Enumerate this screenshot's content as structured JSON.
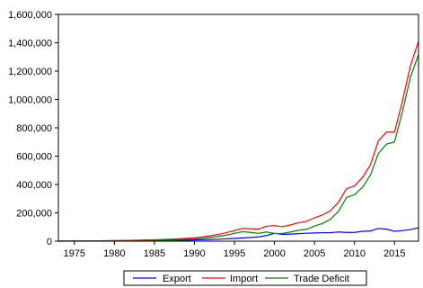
{
  "chart_data": {
    "type": "line",
    "title": "",
    "xlabel": "",
    "ylabel": "",
    "xlim": [
      1973,
      2018
    ],
    "ylim": [
      0,
      1600000
    ],
    "x_ticks": [
      1975,
      1980,
      1985,
      1990,
      1995,
      2000,
      2005,
      2010,
      2015
    ],
    "y_ticks": [
      0,
      200000,
      400000,
      600000,
      800000,
      1000000,
      1200000,
      1400000,
      1600000
    ],
    "x_tick_labels": [
      "1975",
      "1980",
      "1985",
      "1990",
      "1995",
      "2000",
      "2005",
      "2010",
      "2015"
    ],
    "y_tick_labels": [
      "0",
      "200,000",
      "400,000",
      "600,000",
      "800,000",
      "1,000,000",
      "1,200,000",
      "1,400,000",
      "1,600,000"
    ],
    "grid": false,
    "legend_position": "bottom",
    "x": [
      1973,
      1974,
      1975,
      1976,
      1977,
      1978,
      1979,
      1980,
      1981,
      1982,
      1983,
      1984,
      1985,
      1986,
      1987,
      1988,
      1989,
      1990,
      1991,
      1992,
      1993,
      1994,
      1995,
      1996,
      1997,
      1998,
      1999,
      2000,
      2001,
      2002,
      2003,
      2004,
      2005,
      2006,
      2007,
      2008,
      2009,
      2010,
      2011,
      2012,
      2013,
      2014,
      2015,
      2016,
      2017,
      2018
    ],
    "series": [
      {
        "name": "Export",
        "color": "#0000ff",
        "values": [
          200,
          300,
          400,
          500,
          600,
          800,
          1000,
          1200,
          1500,
          1800,
          2200,
          2700,
          3300,
          4000,
          4800,
          5800,
          7000,
          8500,
          10000,
          12000,
          14000,
          17000,
          20000,
          23000,
          26000,
          30000,
          40000,
          55000,
          48000,
          50000,
          53000,
          56000,
          58000,
          60000,
          60000,
          65000,
          62000,
          62000,
          70000,
          72000,
          90000,
          85000,
          70000,
          75000,
          82000,
          95000
        ]
      },
      {
        "name": "Import",
        "color": "#ff0000",
        "values": [
          1000,
          1300,
          1600,
          2000,
          2400,
          2900,
          3500,
          4200,
          5000,
          6000,
          7000,
          8500,
          10000,
          12000,
          14500,
          17000,
          20000,
          24000,
          30000,
          38000,
          48000,
          60000,
          75000,
          90000,
          88000,
          85000,
          105000,
          110000,
          102000,
          115000,
          130000,
          140000,
          165000,
          185000,
          215000,
          275000,
          370000,
          390000,
          450000,
          540000,
          710000,
          770000,
          770000,
          990000,
          1240000,
          1410000
        ]
      },
      {
        "name": "Trade Deficit",
        "color": "#008000",
        "values": [
          800,
          1000,
          1200,
          1500,
          1800,
          2100,
          2500,
          3000,
          3500,
          4200,
          4800,
          5800,
          6700,
          8000,
          9700,
          11200,
          13000,
          15500,
          20000,
          26000,
          34000,
          43000,
          55000,
          67000,
          62000,
          55000,
          65000,
          55000,
          54000,
          65000,
          77000,
          84000,
          107000,
          125000,
          155000,
          210000,
          308000,
          328000,
          380000,
          468000,
          620000,
          685000,
          700000,
          915000,
          1158000,
          1315000
        ]
      }
    ]
  }
}
